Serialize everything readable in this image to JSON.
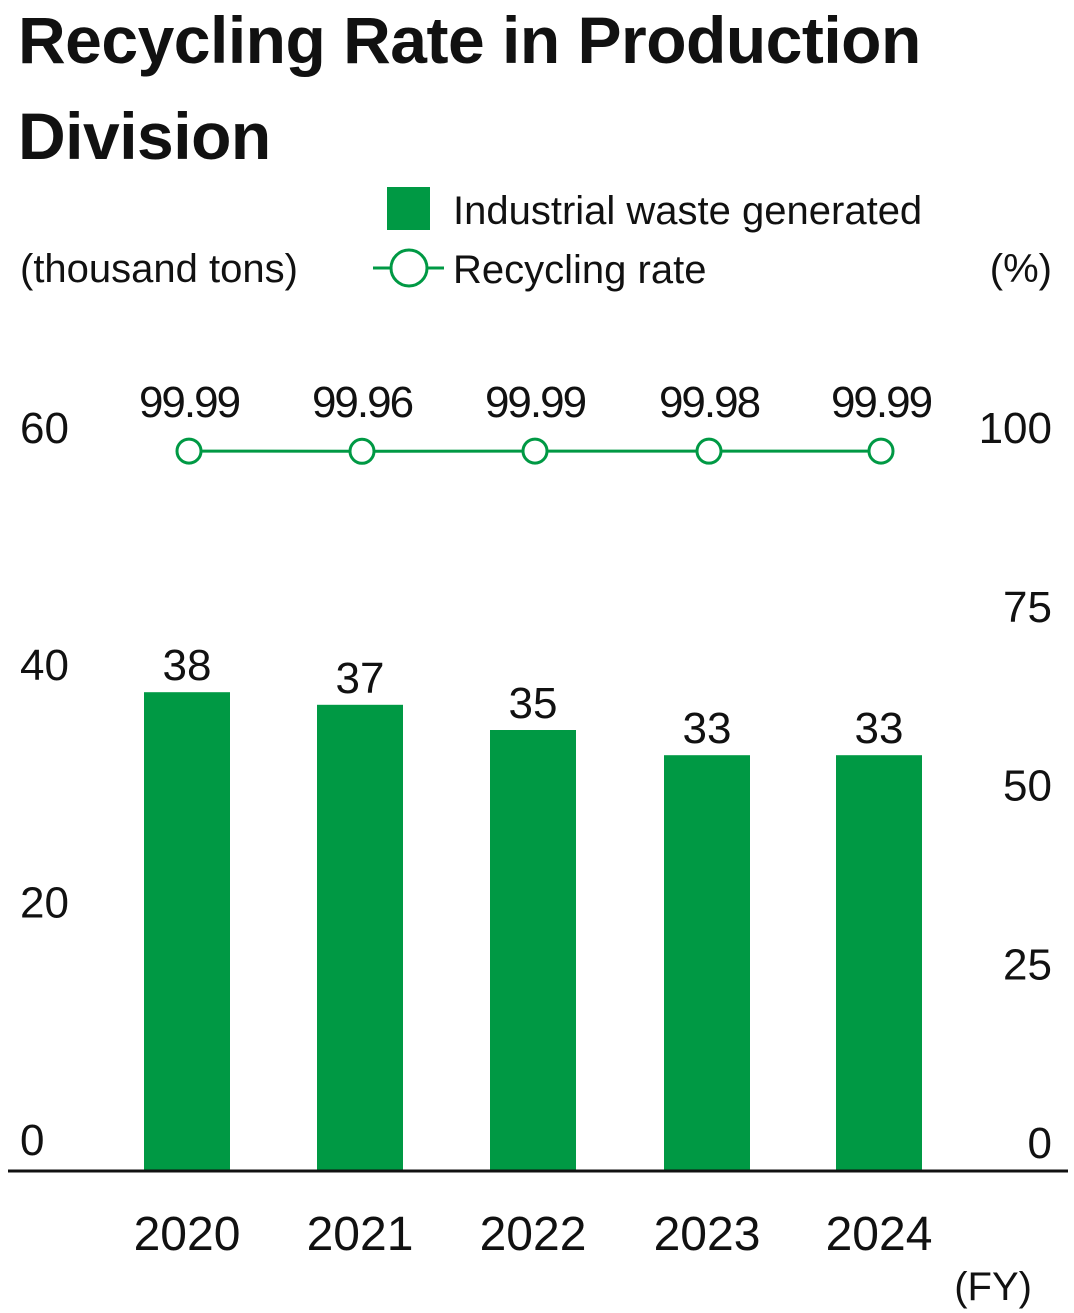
{
  "chart_data": {
    "type": "bar+line",
    "title": "Recycling Rate in Production Division",
    "categories": [
      "2020",
      "2021",
      "2022",
      "2023",
      "2024"
    ],
    "xlabel": "(FY)",
    "ylabel_left": "(thousand tons)",
    "ylabel_right": "(%)",
    "ylim_left": [
      0,
      60
    ],
    "yticks_left": [
      0,
      20,
      40,
      60
    ],
    "ylim_right": [
      0,
      100
    ],
    "yticks_right": [
      0,
      25,
      50,
      75,
      100
    ],
    "grid": false,
    "legend_placement": "top",
    "series": [
      {
        "name": "Industrial waste generated",
        "type": "bar",
        "axis": "left",
        "color": "#009944",
        "values": [
          38,
          37,
          35,
          33,
          33
        ]
      },
      {
        "name": "Recycling rate",
        "type": "line",
        "axis": "right",
        "color": "#009944",
        "marker": "open-circle",
        "values": [
          99.99,
          99.96,
          99.99,
          99.98,
          99.99
        ]
      }
    ]
  }
}
